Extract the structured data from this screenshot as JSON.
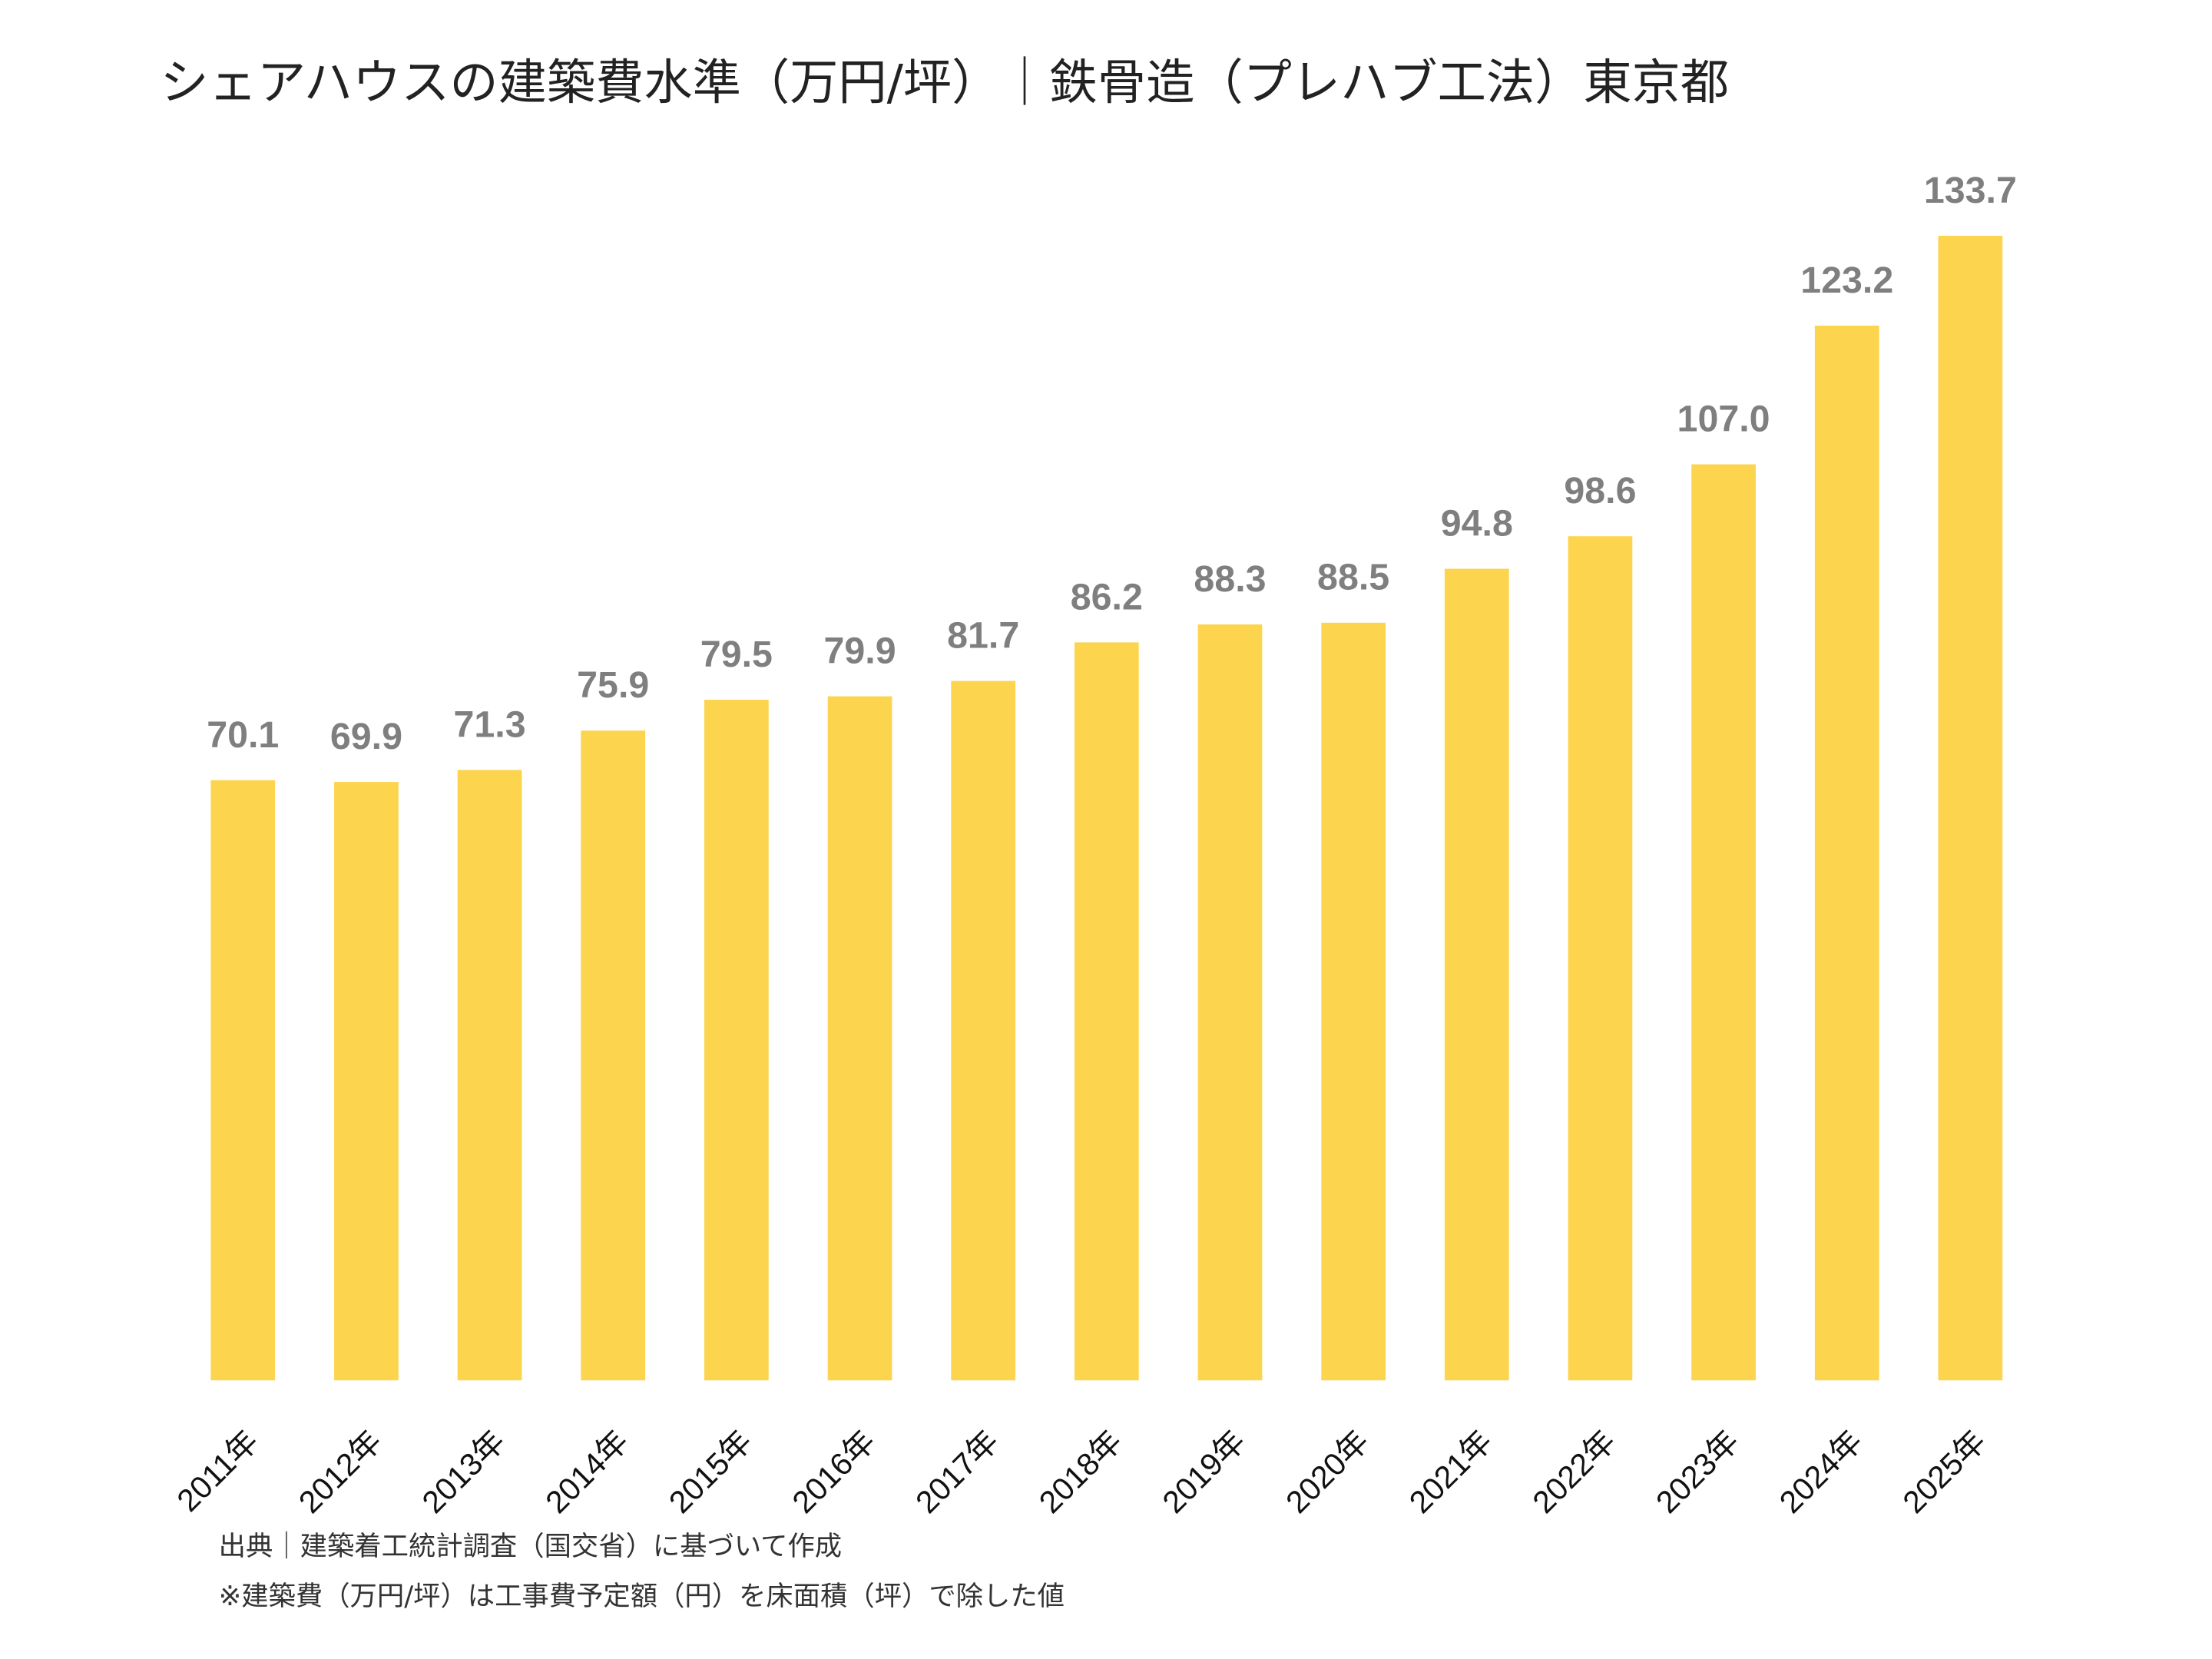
{
  "chart_data": {
    "type": "bar",
    "title": "シェアハウスの建築費水準（万円/坪）｜鉄骨造（プレハブ工法）東京都",
    "categories": [
      "2011年",
      "2012年",
      "2013年",
      "2014年",
      "2015年",
      "2016年",
      "2017年",
      "2018年",
      "2019年",
      "2020年",
      "2021年",
      "2022年",
      "2023年",
      "2024年",
      "2025年"
    ],
    "values": [
      70.1,
      69.9,
      71.3,
      75.9,
      79.5,
      79.9,
      81.7,
      86.2,
      88.3,
      88.5,
      94.8,
      98.6,
      107.0,
      123.2,
      133.7
    ],
    "value_labels": [
      "70.1",
      "69.9",
      "71.3",
      "75.9",
      "79.5",
      "79.9",
      "81.7",
      "86.2",
      "88.3",
      "88.5",
      "94.8",
      "98.6",
      "107.0",
      "123.2",
      "133.7"
    ],
    "color": "#fdd44e",
    "notes": [
      "出典｜建築着工統計調査（国交省）に基づいて作成",
      "※建築費（万円/坪）は工事費予定額（円）を床面積（坪）で除した値"
    ]
  }
}
